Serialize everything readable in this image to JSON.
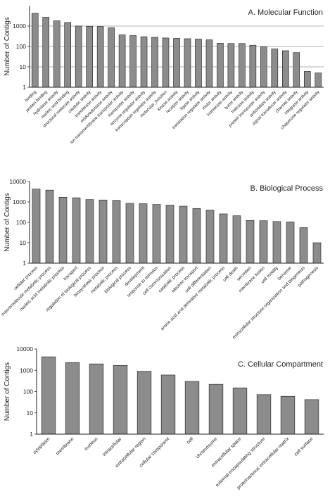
{
  "colors": {
    "bar": "#8c8c8c",
    "bar_stroke": "#1a1a1a",
    "grid": "#9a9a9a",
    "axis": "#222222",
    "text": "#222222"
  },
  "chart_data": [
    {
      "type": "bar",
      "title": "A. Molecular Function",
      "ylabel": "Number of Contigs",
      "xlabel": "",
      "yscale": "log",
      "ylim": [
        1,
        10000
      ],
      "yticks": [
        "1",
        "10",
        "100",
        "1000"
      ],
      "grid": true,
      "categories": [
        "binding",
        "protein binding",
        "hydrolase activity",
        "nucleic acid binding",
        "structural molecule activity",
        "catalytic activity",
        "transferase activity",
        "oxidoreductase activity",
        "ion transmembrane transporter activity",
        "transporter activity",
        "enzyme regulator activity",
        "transcription regulator activity",
        "molecular_function",
        "kinase activity",
        "receptor activity",
        "ligase activity",
        "translation regulator activity",
        "motor activity",
        "isomerase activity",
        "lyase activity",
        "helicase activity",
        "protein transporter activity",
        "antioxidant activity",
        "signal transducer activity",
        "channel activity",
        "integrase activity",
        "chaperone regulator activity"
      ],
      "values": [
        4200,
        2700,
        1800,
        1500,
        1000,
        980,
        950,
        820,
        370,
        340,
        300,
        280,
        260,
        250,
        240,
        230,
        210,
        145,
        140,
        140,
        115,
        95,
        75,
        62,
        50,
        6,
        5
      ]
    },
    {
      "type": "bar",
      "title": "B. Biological Process",
      "ylabel": "Number of Contigs",
      "xlabel": "",
      "yscale": "log",
      "ylim": [
        1,
        10000
      ],
      "yticks": [
        "1",
        "10",
        "100",
        "1000",
        "10000"
      ],
      "grid": false,
      "categories": [
        "cellular process",
        "macromolecule metabolic process",
        "nucleic acid metabolic process",
        "transport",
        "regulation of biological process",
        "biosynthetic process",
        "metabolic process",
        "biological process",
        "development",
        "response to stimulus",
        "cell communication",
        "catabolic process",
        "electron transport",
        "cell differentiation",
        "amino acid and derivative metabolic process",
        "cell death",
        "secretion",
        "membrane fusion",
        "cell motility",
        "behavior",
        "extracellular structure organization and biogenesis",
        "pathogenesis"
      ],
      "values": [
        4300,
        3800,
        1700,
        1600,
        1300,
        1250,
        1200,
        850,
        820,
        750,
        700,
        620,
        480,
        400,
        260,
        210,
        125,
        120,
        110,
        105,
        55,
        10
      ]
    },
    {
      "type": "bar",
      "title": "C. Cellular Compartment",
      "ylabel": "Number of Contigs",
      "xlabel": "",
      "yscale": "log",
      "ylim": [
        1,
        10000
      ],
      "yticks": [
        "1",
        "10",
        "100",
        "1000",
        "10000"
      ],
      "grid": false,
      "categories": [
        "cytoplasm",
        "membrane",
        "nucleus",
        "intracellular",
        "extracellular region",
        "cellular component",
        "cell",
        "chromosome",
        "extracellular space",
        "external encapsulating structure",
        "proteinaceous extracellular matrix",
        "cell surface"
      ],
      "values": [
        4300,
        2300,
        2000,
        1700,
        900,
        600,
        300,
        220,
        150,
        72,
        60,
        42
      ]
    }
  ]
}
